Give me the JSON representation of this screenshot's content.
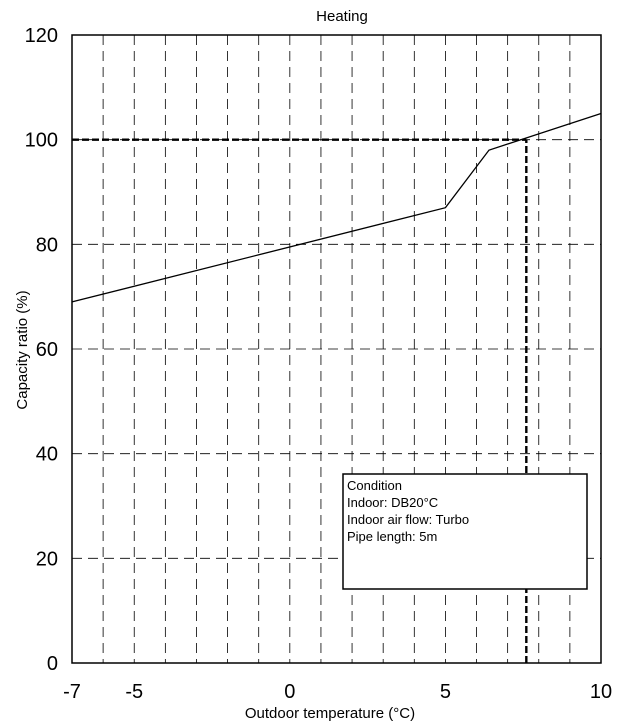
{
  "chart_data": {
    "type": "line",
    "title": "Heating",
    "xlabel": "Outdoor temperature (°C)",
    "ylabel": "Capacity ratio (%)",
    "xlim": [
      -7,
      10
    ],
    "ylim": [
      0,
      120
    ],
    "x_ticks": [
      -7,
      -5,
      0,
      5,
      10
    ],
    "x_tick_labels": [
      "-7",
      "-5",
      "0",
      "5",
      "10"
    ],
    "y_ticks": [
      0,
      20,
      40,
      60,
      80,
      100,
      120
    ],
    "y_tick_labels": [
      "0",
      "20",
      "40",
      "60",
      "80",
      "100",
      "120"
    ],
    "grid": true,
    "x_grid_lines": [
      -6,
      -5,
      -4,
      -3,
      -2,
      -1,
      0,
      1,
      2,
      3,
      4,
      5,
      6,
      7,
      8,
      9
    ],
    "series": [
      {
        "x": [
          -7,
          5,
          6.4,
          10
        ],
        "y": [
          69,
          87,
          98,
          105
        ],
        "color": "#000000"
      }
    ],
    "reference_lines": [
      {
        "orientation": "horizontal",
        "y": 100,
        "x_range": [
          -7,
          7.6
        ],
        "style": "dashed-bold"
      },
      {
        "orientation": "vertical",
        "x": 7.6,
        "y_range": [
          0,
          100
        ],
        "style": "dashed-bold"
      }
    ],
    "annotation": {
      "lines": [
        "Condition",
        "Indoor: DB20°C",
        "Indoor air flow: Turbo",
        "Pipe length: 5m"
      ]
    }
  }
}
